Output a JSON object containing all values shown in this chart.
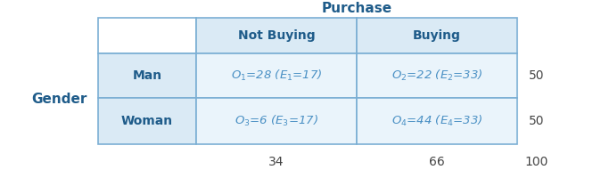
{
  "title": "Purchase",
  "row_label": "Gender",
  "col_headers": [
    "",
    "Not Buying",
    "Buying"
  ],
  "row_headers": [
    "Man",
    "Woman"
  ],
  "cell_data": [
    [
      "$O_1$=28 ($E_1$=17)",
      "$O_2$=22 ($E_2$=33)"
    ],
    [
      "$O_3$=6 ($E_3$=17)",
      "$O_4$=44 ($E_4$=33)"
    ]
  ],
  "row_totals": [
    "50",
    "50"
  ],
  "col_totals": [
    "34",
    "66",
    "100"
  ],
  "header_bg": "#DAEAF5",
  "cell_bg": "#EAF4FB",
  "header_text_color": "#1F5C8A",
  "cell_text_color": "#4A90C4",
  "total_text_color": "#444444",
  "border_color": "#7BAFD4",
  "title_color": "#1F5C8A",
  "row_label_color": "#1F5C8A",
  "white": "#FFFFFF"
}
